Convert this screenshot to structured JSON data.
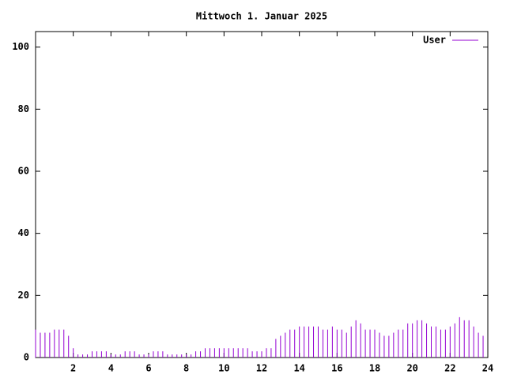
{
  "chart_data": {
    "type": "impulses",
    "title": "Mittwoch 1. Januar 2025",
    "x": [
      0,
      0.25,
      0.5,
      0.75,
      1,
      1.25,
      1.5,
      1.75,
      2,
      2.25,
      2.5,
      2.75,
      3,
      3.25,
      3.5,
      3.75,
      4,
      4.25,
      4.5,
      4.75,
      5,
      5.25,
      5.5,
      5.75,
      6,
      6.25,
      6.5,
      6.75,
      7,
      7.25,
      7.5,
      7.75,
      8,
      8.25,
      8.5,
      8.75,
      9,
      9.25,
      9.5,
      9.75,
      10,
      10.25,
      10.5,
      10.75,
      11,
      11.25,
      11.5,
      11.75,
      12,
      12.25,
      12.5,
      12.75,
      13,
      13.25,
      13.5,
      13.75,
      14,
      14.25,
      14.5,
      14.75,
      15,
      15.25,
      15.5,
      15.75,
      16,
      16.25,
      16.5,
      16.75,
      17,
      17.25,
      17.5,
      17.75,
      18,
      18.25,
      18.5,
      18.75,
      19,
      19.25,
      19.5,
      19.75,
      20,
      20.25,
      20.5,
      20.75,
      21,
      21.25,
      21.5,
      21.75,
      22,
      22.25,
      22.5,
      22.75,
      23,
      23.25,
      23.5,
      23.75
    ],
    "series": [
      {
        "name": "User",
        "color": "#9400d3",
        "values": [
          9,
          8,
          8,
          8,
          9,
          9,
          9,
          7,
          3,
          1,
          1,
          1,
          2,
          2,
          2,
          2,
          1,
          1,
          1,
          2,
          2,
          2,
          1,
          1,
          1,
          2,
          2,
          2,
          1,
          1,
          1,
          1,
          1,
          1,
          2,
          2,
          3,
          3,
          3,
          3,
          3,
          3,
          3,
          3,
          3,
          3,
          2,
          2,
          2,
          3,
          3,
          6,
          7,
          8,
          9,
          9,
          10,
          10,
          10,
          10,
          10,
          9,
          9,
          10,
          9,
          9,
          8,
          10,
          12,
          11,
          9,
          9,
          9,
          8,
          7,
          7,
          8,
          9,
          9,
          11,
          11,
          12,
          12,
          11,
          10,
          10,
          9,
          9,
          10,
          11,
          13,
          12,
          12,
          10,
          8,
          7
        ]
      }
    ],
    "xlim": [
      0,
      24
    ],
    "xticks": [
      2,
      4,
      6,
      8,
      10,
      12,
      14,
      16,
      18,
      20,
      22,
      24
    ],
    "ylim": [
      0,
      105
    ],
    "yticks": [
      0,
      20,
      40,
      60,
      80,
      100
    ],
    "legend": "top-right"
  }
}
